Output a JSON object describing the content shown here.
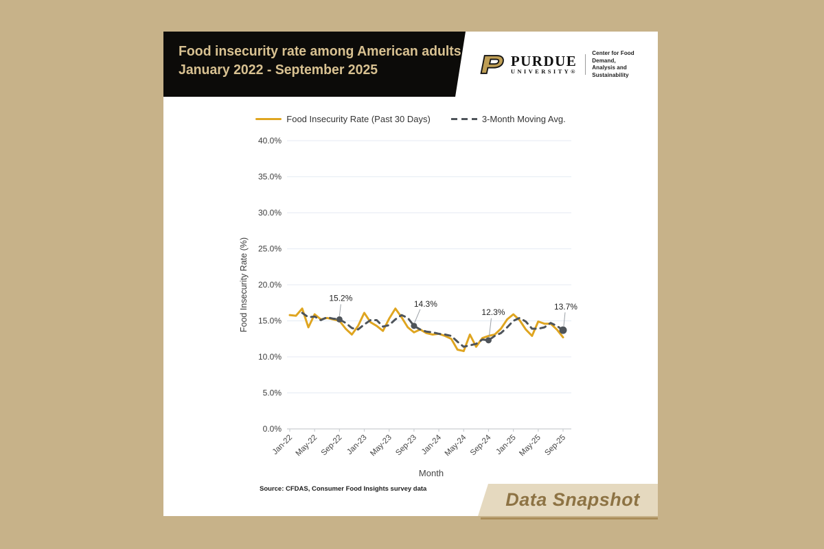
{
  "header": {
    "title_line1": "Food insecurity rate among American adults,",
    "title_line2": "January 2022 - September 2025",
    "brand": {
      "wordmark": "PURDUE",
      "university": "UNIVERSITY®",
      "unit_line1": "Center for Food Demand,",
      "unit_line2": "Analysis and Sustainability"
    }
  },
  "legend": {
    "series1_label": "Food Insecurity Rate (Past 30 Days)",
    "series2_label": "3-Month Moving Avg."
  },
  "footer": {
    "source": "Source: CFDAS, Consumer Food Insights survey data",
    "badge": "Data Snapshot"
  },
  "colors": {
    "background": "#c7b289",
    "banner_black": "#0c0b09",
    "title_gold": "#d8c191",
    "series_gold": "#DFA520",
    "series_gray": "#4E545A",
    "grid": "#e9eef5",
    "axis": "#c9cdd1",
    "tick_label": "#3d3d3d",
    "snapshot_bg": "#e5d9bf",
    "snapshot_text": "#8d7344"
  },
  "chart_data": {
    "type": "line",
    "title": "Food insecurity rate among American adults, January 2022 - September 2025",
    "xlabel": "Month",
    "ylabel": "Food Insecurity Rate (%)",
    "ylim": [
      0,
      40
    ],
    "ytick_step": 5,
    "ytick_labels": [
      "0.0%",
      "5.0%",
      "10.0%",
      "15.0%",
      "20.0%",
      "25.0%",
      "30.0%",
      "35.0%",
      "40.0%"
    ],
    "grid": "horizontal",
    "legend_position": "top",
    "months": [
      "Jan-22",
      "Feb-22",
      "Mar-22",
      "Apr-22",
      "May-22",
      "Jun-22",
      "Jul-22",
      "Aug-22",
      "Sep-22",
      "Oct-22",
      "Nov-22",
      "Dec-22",
      "Jan-23",
      "Feb-23",
      "Mar-23",
      "Apr-23",
      "May-23",
      "Jun-23",
      "Jul-23",
      "Aug-23",
      "Sep-23",
      "Oct-23",
      "Nov-23",
      "Dec-23",
      "Jan-24",
      "Feb-24",
      "Mar-24",
      "Apr-24",
      "May-24",
      "Jun-24",
      "Jul-24",
      "Aug-24",
      "Sep-24",
      "Oct-24",
      "Nov-24",
      "Dec-24",
      "Jan-25",
      "Feb-25",
      "Mar-25",
      "Apr-25",
      "May-25",
      "Jun-25",
      "Jul-25",
      "Aug-25",
      "Sep-25"
    ],
    "x_tick_labels": [
      "Jan-22",
      "May-22",
      "Sep-22",
      "Jan-23",
      "May-23",
      "Sep-23",
      "Jan-24",
      "May-24",
      "Sep-24",
      "Jan-25",
      "May-25",
      "Sep-25"
    ],
    "x_tick_every": 4,
    "series": [
      {
        "name": "Food Insecurity Rate (Past 30 Days)",
        "style": "solid",
        "color": "#DFA520",
        "values": [
          15.8,
          15.7,
          16.7,
          14.1,
          15.9,
          15.2,
          15.4,
          15.2,
          15.0,
          13.9,
          13.1,
          14.3,
          16.1,
          14.8,
          14.3,
          13.6,
          15.3,
          16.7,
          15.5,
          14.1,
          13.4,
          13.8,
          13.3,
          13.1,
          13.2,
          12.9,
          12.5,
          11.0,
          10.8,
          13.1,
          11.4,
          12.6,
          12.9,
          13.1,
          13.9,
          15.2,
          15.9,
          15.1,
          13.8,
          12.9,
          14.9,
          14.6,
          14.6,
          13.8,
          12.7
        ]
      },
      {
        "name": "3-Month Moving Avg.",
        "style": "dashed",
        "color": "#4E545A",
        "values": [
          null,
          null,
          16.1,
          15.5,
          15.6,
          15.1,
          15.5,
          15.3,
          15.2,
          14.7,
          14.0,
          13.8,
          14.5,
          15.1,
          15.1,
          14.2,
          14.4,
          15.2,
          15.8,
          15.4,
          14.3,
          13.8,
          13.5,
          13.4,
          13.2,
          13.1,
          12.9,
          12.1,
          11.4,
          11.6,
          11.8,
          12.4,
          12.3,
          12.9,
          13.3,
          14.1,
          15.0,
          15.4,
          14.9,
          13.9,
          13.9,
          14.1,
          14.7,
          14.3,
          13.7
        ]
      }
    ],
    "annotations": [
      {
        "month": "Sep-22",
        "index": 8,
        "series": "3-Month Moving Avg.",
        "value": 15.2,
        "label": "15.2%"
      },
      {
        "month": "Sep-23",
        "index": 20,
        "series": "3-Month Moving Avg.",
        "value": 14.3,
        "label": "14.3%"
      },
      {
        "month": "Sep-24",
        "index": 32,
        "series": "3-Month Moving Avg.",
        "value": 12.3,
        "label": "12.3%"
      },
      {
        "month": "Sep-25",
        "index": 44,
        "series": "3-Month Moving Avg.",
        "value": 13.7,
        "label": "13.7%"
      }
    ]
  }
}
